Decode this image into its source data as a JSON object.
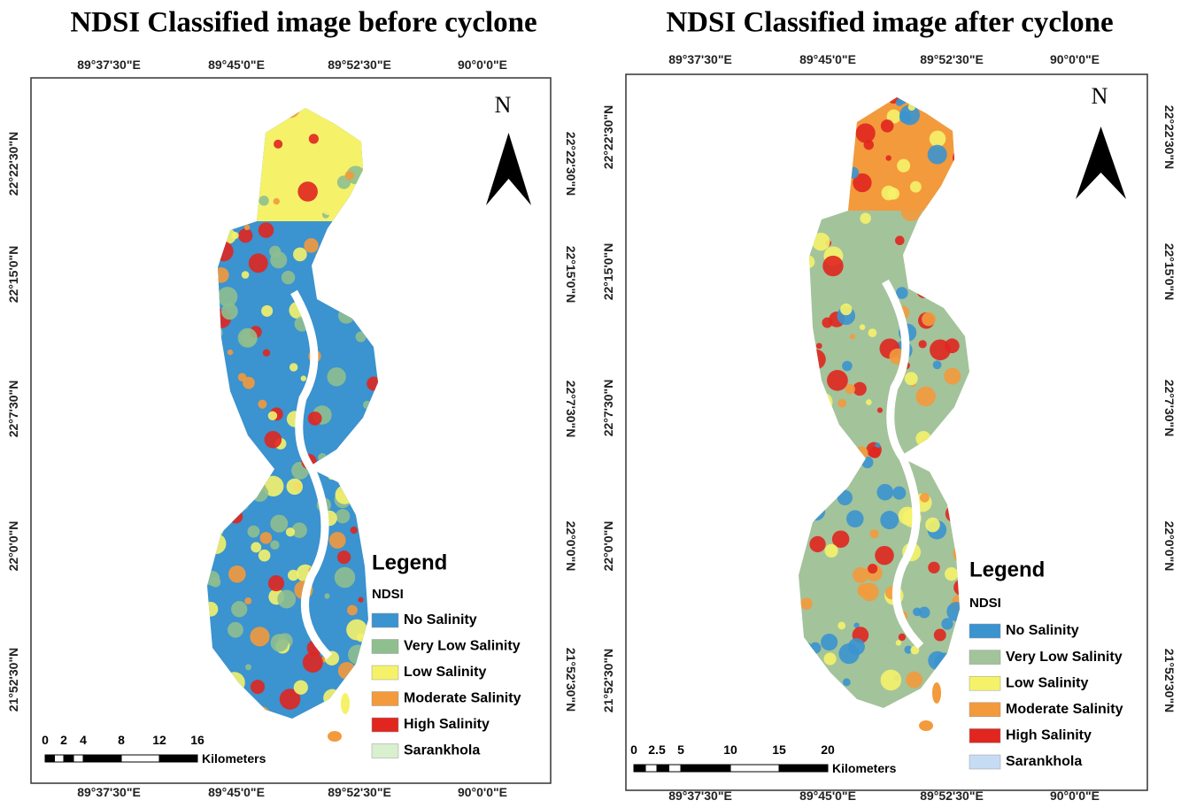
{
  "panels": [
    {
      "title": "NDSI Classified image before cyclone",
      "top_ticks": [
        "89°37'30\"E",
        "89°45'0\"E",
        "89°52'30\"E",
        "90°0'0\"E"
      ],
      "bottom_ticks": [
        "89°37'30\"E",
        "89°45'0\"E",
        "89°52'30\"E",
        "90°0'0\"E"
      ],
      "left_ticks": [
        "22°22'30\"N",
        "22°15'0\"N",
        "22°7'30\"N",
        "22°0'0\"N",
        "21°52'30\"N"
      ],
      "right_ticks": [
        "22°22'30\"N",
        "22°15'0\"N",
        "22°7'30\"N",
        "22°0'0\"N",
        "21°52'30\"N"
      ],
      "north": "N",
      "legend": {
        "title": "Legend",
        "subtitle": "NDSI",
        "items": [
          {
            "label": "No Salinity",
            "color": "#3b93cf"
          },
          {
            "label": "Very Low Salinity",
            "color": "#8fbf8f"
          },
          {
            "label": "Low Salinity",
            "color": "#f5f26a"
          },
          {
            "label": "Moderate Salinity",
            "color": "#f39a3c"
          },
          {
            "label": "High Salinity",
            "color": "#e0261f"
          },
          {
            "label": "Sarankhola",
            "color": "#d9f0cf"
          }
        ]
      },
      "scale": {
        "labels": [
          "0",
          "2",
          "4",
          "8",
          "12",
          "16"
        ],
        "unit": "Kilometers"
      }
    },
    {
      "title": "NDSI Classified image after cyclone",
      "top_ticks": [
        "89°37'30\"E",
        "89°45'0\"E",
        "89°52'30\"E",
        "90°0'0\"E"
      ],
      "bottom_ticks": [
        "89°37'30\"E",
        "89°45'0\"E",
        "89°52'30\"E",
        "90°0'0\"E"
      ],
      "left_ticks": [
        "22°22'30\"N",
        "22°15'0\"N",
        "22°7'30\"N",
        "22°0'0\"N",
        "21°52'30\"N"
      ],
      "right_ticks": [
        "22°22'30\"N",
        "22°15'0\"N",
        "22°7'30\"N",
        "22°0'0\"N",
        "21°52'30\"N"
      ],
      "north": "N",
      "legend": {
        "title": "Legend",
        "subtitle": "NDSI",
        "items": [
          {
            "label": "No Salinity",
            "color": "#3b93cf"
          },
          {
            "label": "Very Low Salinity",
            "color": "#a3c39b"
          },
          {
            "label": "Low Salinity",
            "color": "#f5f26a"
          },
          {
            "label": "Moderate Salinity",
            "color": "#f39a3c"
          },
          {
            "label": "High Salinity",
            "color": "#e0261f"
          },
          {
            "label": "Sarankhola",
            "color": "#c6dcf5"
          }
        ]
      },
      "scale": {
        "labels": [
          "0",
          "2.5",
          "5",
          "10",
          "15",
          "20"
        ],
        "unit": "Kilometers"
      }
    }
  ]
}
